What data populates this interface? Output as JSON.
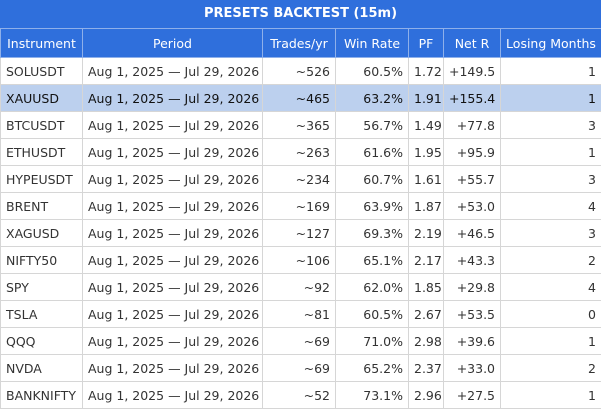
{
  "header": {
    "title": "PRESETS BACKTEST (15m)"
  },
  "table": {
    "columns": [
      "Instrument",
      "Period",
      "Trades/yr",
      "Win Rate",
      "PF",
      "Net R",
      "Losing Months"
    ],
    "highlighted_row": 1,
    "rows": [
      [
        "SOLUSDT",
        "Aug 1, 2025 — Jul 29, 2026",
        "~526",
        "60.5%",
        "1.72",
        "+149.5",
        "1"
      ],
      [
        "XAUUSD",
        "Aug 1, 2025 — Jul 29, 2026",
        "~465",
        "63.2%",
        "1.91",
        "+155.4",
        "1"
      ],
      [
        "BTCUSDT",
        "Aug 1, 2025 — Jul 29, 2026",
        "~365",
        "56.7%",
        "1.49",
        "+77.8",
        "3"
      ],
      [
        "ETHUSDT",
        "Aug 1, 2025 — Jul 29, 2026",
        "~263",
        "61.6%",
        "1.95",
        "+95.9",
        "1"
      ],
      [
        "HYPEUSDT",
        "Aug 1, 2025 — Jul 29, 2026",
        "~234",
        "60.7%",
        "1.61",
        "+55.7",
        "3"
      ],
      [
        "BRENT",
        "Aug 1, 2025 — Jul 29, 2026",
        "~169",
        "63.9%",
        "1.87",
        "+53.0",
        "4"
      ],
      [
        "XAGUSD",
        "Aug 1, 2025 — Jul 29, 2026",
        "~127",
        "69.3%",
        "2.19",
        "+46.5",
        "3"
      ],
      [
        "NIFTY50",
        "Aug 1, 2025 — Jul 29, 2026",
        "~106",
        "65.1%",
        "2.17",
        "+43.3",
        "2"
      ],
      [
        "SPY",
        "Aug 1, 2025 — Jul 29, 2026",
        "~92",
        "62.0%",
        "1.85",
        "+29.8",
        "4"
      ],
      [
        "TSLA",
        "Aug 1, 2025 — Jul 29, 2026",
        "~81",
        "60.5%",
        "2.67",
        "+53.5",
        "0"
      ],
      [
        "QQQ",
        "Aug 1, 2025 — Jul 29, 2026",
        "~69",
        "71.0%",
        "2.98",
        "+39.6",
        "1"
      ],
      [
        "NVDA",
        "Aug 1, 2025 — Jul 29, 2026",
        "~69",
        "65.2%",
        "2.37",
        "+33.0",
        "2"
      ],
      [
        "BANKNIFTY",
        "Aug 1, 2025 — Jul 29, 2026",
        "~52",
        "73.1%",
        "2.96",
        "+27.5",
        "1"
      ]
    ]
  }
}
